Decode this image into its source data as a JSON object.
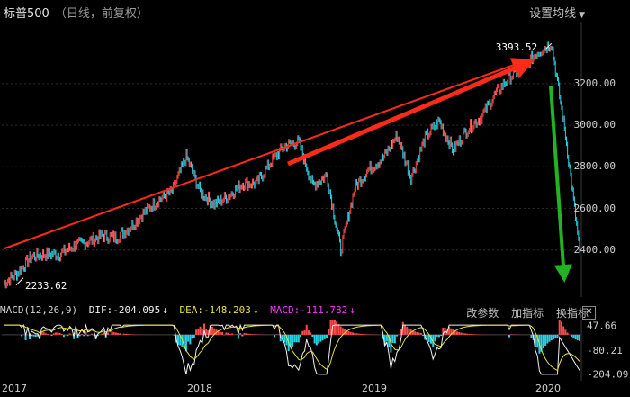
{
  "header": {
    "title": "标普500",
    "subtitle": "（日线，前复权）",
    "ma_button": "设置均线"
  },
  "macd_bar": {
    "name": "MACD(12,26,9)",
    "dif_label": "DIF:-204.095",
    "dea_label": "DEA:-148.203",
    "macd_label": "MACD:-111.782",
    "arrow": "↓",
    "actions": [
      "改参数",
      "加指标",
      "换指标"
    ],
    "close": "✕"
  },
  "colors": {
    "up": "#ff4a4a",
    "down": "#27d3e6",
    "dif": "#f2f2f2",
    "dea": "#e7e03a",
    "macd_text": "#ff33ff",
    "trend_up": "#ff2a1a",
    "trend_down": "#22b322"
  },
  "chart_data": [
    {
      "type": "line",
      "title": "标普500",
      "ylim": [
        2200,
        3420
      ],
      "y_ticks": [
        "3200.00",
        "3000.00",
        "2800.00",
        "2600.00",
        "2400.00"
      ],
      "x_ticks": [
        "2017",
        "2018",
        "2019",
        "2020"
      ],
      "annotations": {
        "high": "3393.52",
        "low": "2233.62"
      },
      "series": [
        {
          "dates": [
            "2016-12",
            "2017-01",
            "2017-02",
            "2017-03",
            "2017-04",
            "2017-05",
            "2017-06",
            "2017-07",
            "2017-08",
            "2017-09",
            "2017-10",
            "2017-11",
            "2017-12",
            "2018-01",
            "2018-02",
            "2018-03",
            "2018-04",
            "2018-05",
            "2018-06",
            "2018-07",
            "2018-08",
            "2018-09",
            "2018-10",
            "2018-11",
            "2018-12",
            "2019-01",
            "2019-02",
            "2019-03",
            "2019-04",
            "2019-05",
            "2019-06",
            "2019-07",
            "2019-08",
            "2019-09",
            "2019-10",
            "2019-11",
            "2019-12",
            "2020-01",
            "2020-02-early",
            "2020-02-peak",
            "2020-03-early",
            "2020-03-mid"
          ],
          "values": [
            2240,
            2290,
            2370,
            2380,
            2380,
            2420,
            2440,
            2470,
            2460,
            2510,
            2580,
            2640,
            2680,
            2850,
            2680,
            2620,
            2660,
            2720,
            2720,
            2820,
            2900,
            2920,
            2710,
            2760,
            2400,
            2700,
            2790,
            2840,
            2950,
            2750,
            2940,
            3020,
            2880,
            2980,
            3040,
            3150,
            3230,
            3280,
            3350,
            3393,
            2950,
            2400
          ]
        }
      ]
    },
    {
      "type": "bar",
      "title": "MACD(12,26,9)",
      "ylim": [
        -210,
        60
      ],
      "y_ticks": [
        "47.66",
        "-80.21",
        "-204.09"
      ]
    }
  ]
}
